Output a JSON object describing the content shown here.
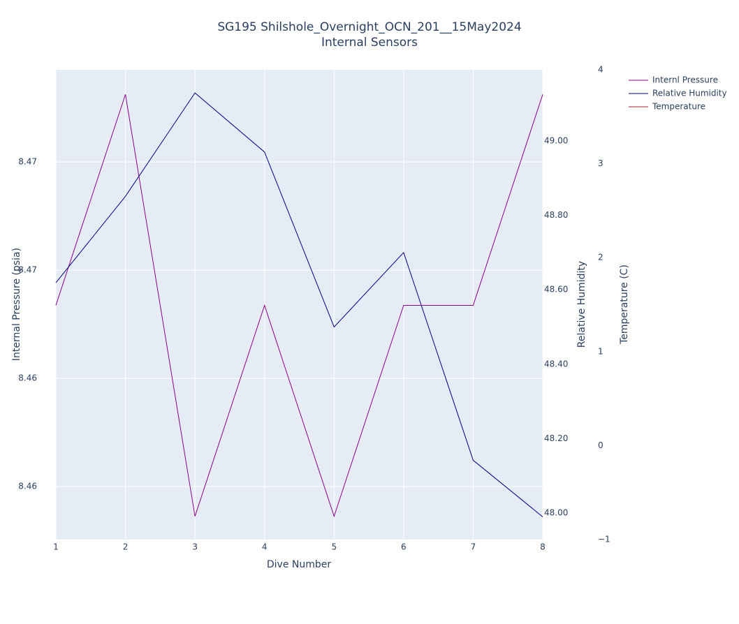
{
  "chart_data": {
    "type": "line",
    "title": "SG195 Shilshole_Overnight_OCN_201__15May2024",
    "subtitle": "Internal Sensors",
    "x_label": "Dive Number",
    "y_label": "Internal Pressure (psia)",
    "y2_label": "Relative Humidity",
    "y3_label": "Temperature (C)",
    "x": [
      1,
      2,
      3,
      4,
      5,
      6,
      7,
      8
    ],
    "xlim": [
      1,
      8
    ],
    "xticks": [
      1,
      2,
      3,
      4,
      5,
      6,
      7,
      8
    ],
    "ylim": [
      8.45804,
      8.47541
    ],
    "yticks": [
      {
        "value": 8.46,
        "label": "8.46"
      },
      {
        "value": 8.464,
        "label": "8.46"
      },
      {
        "value": 8.468,
        "label": "8.47"
      },
      {
        "value": 8.472,
        "label": "8.47"
      }
    ],
    "y2lim": [
      47.929,
      49.191
    ],
    "y2ticks": [
      {
        "value": 48.0,
        "label": "48.00"
      },
      {
        "value": 48.2,
        "label": "48.20"
      },
      {
        "value": 48.4,
        "label": "48.40"
      },
      {
        "value": 48.6,
        "label": "48.60"
      },
      {
        "value": 48.8,
        "label": "48.80"
      },
      {
        "value": 49.0,
        "label": "49.00"
      }
    ],
    "y3lim": [
      -1,
      4
    ],
    "y3ticks": [
      {
        "value": -1,
        "label": "−1"
      },
      0,
      1,
      2,
      3,
      4
    ],
    "grid": true,
    "legend": "top-right",
    "series": [
      {
        "name": "Internl Pressure",
        "color": "#8b008b",
        "axis": "y",
        "values": [
          8.4667,
          8.4745,
          8.4589,
          8.4667,
          8.4589,
          8.4667,
          8.4667,
          8.4745
        ]
      },
      {
        "name": "Relative Humidity",
        "color": "#00008b",
        "axis": "y2",
        "values": [
          48.619,
          48.851,
          49.129,
          48.97,
          48.5,
          48.7,
          48.142,
          47.99
        ]
      },
      {
        "name": "Temperature",
        "color": "#b22234",
        "axis": "y3",
        "values": [
          null,
          null,
          null,
          null,
          null,
          null,
          null,
          null
        ]
      }
    ]
  }
}
